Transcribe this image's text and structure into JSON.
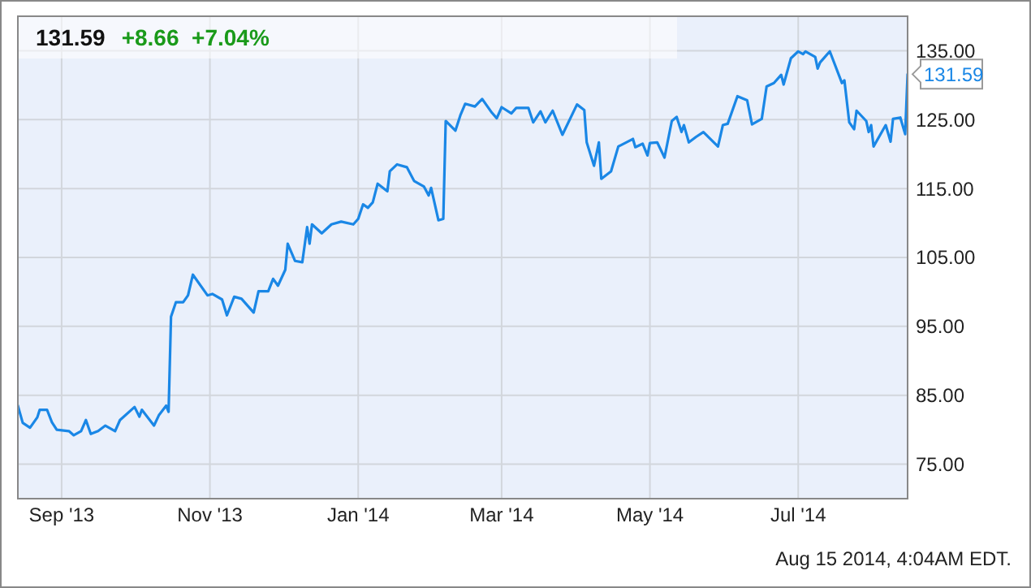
{
  "chart_data": {
    "type": "line",
    "title": "131.59",
    "subtitle": "+8.66  +7.04%",
    "x": [
      "2013-08-14",
      "2013-08-16",
      "2013-08-19",
      "2013-08-22",
      "2013-08-23",
      "2013-08-26",
      "2013-08-28",
      "2013-08-30",
      "2013-09-04",
      "2013-09-06",
      "2013-09-09",
      "2013-09-11",
      "2013-09-13",
      "2013-09-16",
      "2013-09-19",
      "2013-09-23",
      "2013-09-25",
      "2013-10-01",
      "2013-10-03",
      "2013-10-04",
      "2013-10-09",
      "2013-10-11",
      "2013-10-14",
      "2013-10-15",
      "2013-10-16",
      "2013-10-18",
      "2013-10-21",
      "2013-10-23",
      "2013-10-25",
      "2013-10-31",
      "2013-11-02",
      "2013-11-06",
      "2013-11-08",
      "2013-11-11",
      "2013-11-14",
      "2013-11-19",
      "2013-11-21",
      "2013-11-25",
      "2013-11-27",
      "2013-11-29",
      "2013-12-02",
      "2013-12-03",
      "2013-12-06",
      "2013-12-09",
      "2013-12-11",
      "2013-12-12",
      "2013-12-13",
      "2013-12-17",
      "2013-12-21",
      "2013-12-25",
      "2013-12-30",
      "2014-01-01",
      "2014-01-03",
      "2014-01-05",
      "2014-01-07",
      "2014-01-09",
      "2014-01-13",
      "2014-01-14",
      "2014-01-17",
      "2014-01-21",
      "2014-01-24",
      "2014-01-28",
      "2014-01-30",
      "2014-01-31",
      "2014-02-03",
      "2014-02-05",
      "2014-02-06",
      "2014-02-10",
      "2014-02-12",
      "2014-02-14",
      "2014-02-18",
      "2014-02-21",
      "2014-02-25",
      "2014-02-27",
      "2014-03-01",
      "2014-03-05",
      "2014-03-07",
      "2014-03-12",
      "2014-03-14",
      "2014-03-17",
      "2014-03-19",
      "2014-03-22",
      "2014-03-26",
      "2014-04-01",
      "2014-04-04",
      "2014-04-05",
      "2014-04-08",
      "2014-04-10",
      "2014-04-11",
      "2014-04-15",
      "2014-04-18",
      "2014-04-24",
      "2014-04-25",
      "2014-04-28",
      "2014-04-30",
      "2014-05-01",
      "2014-05-04",
      "2014-05-07",
      "2014-05-10",
      "2014-05-12",
      "2014-05-14",
      "2014-05-15",
      "2014-05-17",
      "2014-05-20",
      "2014-05-23",
      "2014-05-29",
      "2014-05-31",
      "2014-06-02",
      "2014-06-06",
      "2014-06-10",
      "2014-06-12",
      "2014-06-16",
      "2014-06-18",
      "2014-06-21",
      "2014-06-24",
      "2014-06-25",
      "2014-06-28",
      "2014-07-01",
      "2014-07-03",
      "2014-07-04",
      "2014-07-08",
      "2014-07-09",
      "2014-07-10",
      "2014-07-14",
      "2014-07-19",
      "2014-07-20",
      "2014-07-22",
      "2014-07-24",
      "2014-07-25",
      "2014-07-29",
      "2014-07-30",
      "2014-07-31",
      "2014-08-01",
      "2014-08-06",
      "2014-08-08",
      "2014-08-09",
      "2014-08-12",
      "2014-08-14",
      "2014-08-15"
    ],
    "series": [
      {
        "color": "#1a87e6",
        "values": [
          83.5,
          81.0,
          80.3,
          81.8,
          82.9,
          82.9,
          81.1,
          80.0,
          79.8,
          79.2,
          79.8,
          81.4,
          79.4,
          79.8,
          80.6,
          79.8,
          81.4,
          83.3,
          81.9,
          82.9,
          80.6,
          82.1,
          83.5,
          82.6,
          96.4,
          98.5,
          98.5,
          99.5,
          102.5,
          99.5,
          99.7,
          98.9,
          96.6,
          99.3,
          99.0,
          97.0,
          100.1,
          100.1,
          101.9,
          100.9,
          103.2,
          107.0,
          104.5,
          104.3,
          109.4,
          107.0,
          109.8,
          108.5,
          109.8,
          110.2,
          109.8,
          110.6,
          112.7,
          112.2,
          113.0,
          115.7,
          114.6,
          117.5,
          118.5,
          118.1,
          116.1,
          115.3,
          114.0,
          115.1,
          110.4,
          110.6,
          124.8,
          123.4,
          125.6,
          127.3,
          126.9,
          128.0,
          126.0,
          125.2,
          126.8,
          125.9,
          126.7,
          126.7,
          124.6,
          126.2,
          124.6,
          126.3,
          122.8,
          127.2,
          126.4,
          121.7,
          118.3,
          121.7,
          116.4,
          117.5,
          121.1,
          122.2,
          121.0,
          121.5,
          119.8,
          121.6,
          121.7,
          119.5,
          124.8,
          125.4,
          123.2,
          124.2,
          121.7,
          122.5,
          123.2,
          121.1,
          124.2,
          124.4,
          128.4,
          127.8,
          124.3,
          125.1,
          129.8,
          130.3,
          131.5,
          130.1,
          133.9,
          134.9,
          134.5,
          134.9,
          134.1,
          132.4,
          133.3,
          134.9,
          130.3,
          130.7,
          124.6,
          123.6,
          126.3,
          124.8,
          123.2,
          124.2,
          121.1,
          124.2,
          121.8,
          125.1,
          125.3,
          122.9,
          131.59
        ]
      }
    ],
    "xlim": [
      "2013-08-14",
      "2014-08-15"
    ],
    "xticks": [
      {
        "value": "2013-09-01",
        "label": "Sep '13"
      },
      {
        "value": "2013-11-01",
        "label": "Nov '13"
      },
      {
        "value": "2014-01-01",
        "label": "Jan '14"
      },
      {
        "value": "2014-03-01",
        "label": "Mar '14"
      },
      {
        "value": "2014-05-01",
        "label": "May '14"
      },
      {
        "value": "2014-07-01",
        "label": "Jul '14"
      }
    ],
    "ylim": [
      70,
      140
    ],
    "yticks": [
      {
        "value": 75,
        "label": "75.00"
      },
      {
        "value": 85,
        "label": "85.00"
      },
      {
        "value": 95,
        "label": "95.00"
      },
      {
        "value": 105,
        "label": "105.00"
      },
      {
        "value": 115,
        "label": "115.00"
      },
      {
        "value": 125,
        "label": "125.00"
      },
      {
        "value": 135,
        "label": "135.00"
      }
    ],
    "grid": true,
    "annotations": [
      {
        "text": "131.59",
        "x": "2014-08-15",
        "y": 131.59
      },
      "Aug 15 2014, 4:04AM EDT."
    ]
  }
}
